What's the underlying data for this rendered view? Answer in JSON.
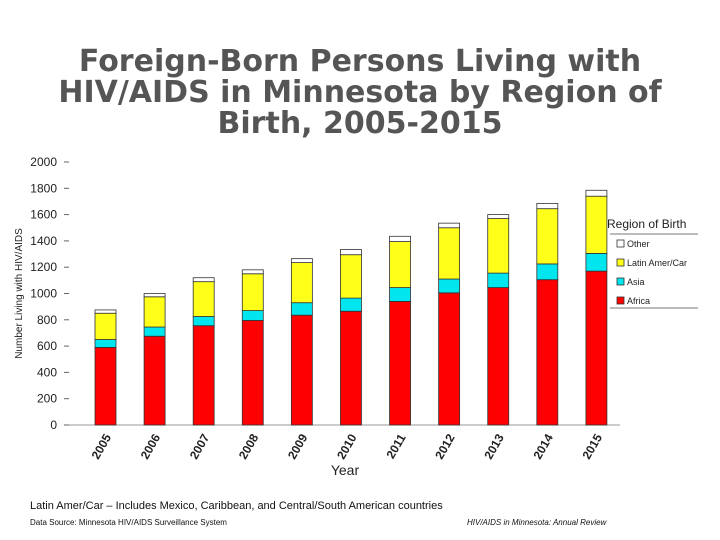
{
  "title_lines": [
    "Foreign-Born Persons Living with",
    "HIV/AIDS in Minnesota by Region of",
    "Birth, 2005-2015"
  ],
  "footnote": "Latin Amer/Car – Includes Mexico, Caribbean, and Central/South American countries",
  "source": "Data Source: Minnesota HIV/AIDS Surveillance System",
  "review": "HIV/AIDS in Minnesota: Annual Review",
  "colors": {
    "Africa": "#ff0000",
    "Asia": "#00e5ee",
    "Latin Amer/Car": "#ffff1a",
    "Other": "#ffffff"
  },
  "chart_data": {
    "type": "bar",
    "stacked": true,
    "title": "Foreign-Born Persons Living with HIV/AIDS in Minnesota by Region of Birth, 2005-2015",
    "xlabel": "Year",
    "ylabel": "Number Living with HIV/AIDS",
    "ylim": [
      0,
      2000
    ],
    "yticks": [
      0,
      200,
      400,
      600,
      800,
      1000,
      1200,
      1400,
      1600,
      1800,
      2000
    ],
    "legend_title": "Region of Birth",
    "legend_position": "right",
    "categories": [
      "2005",
      "2006",
      "2007",
      "2008",
      "2009",
      "2010",
      "2011",
      "2012",
      "2013",
      "2014",
      "2015"
    ],
    "series": [
      {
        "name": "Africa",
        "values": [
          590,
          675,
          755,
          795,
          835,
          865,
          940,
          1005,
          1045,
          1105,
          1170
        ]
      },
      {
        "name": "Asia",
        "values": [
          60,
          70,
          70,
          75,
          95,
          100,
          105,
          105,
          110,
          120,
          135
        ]
      },
      {
        "name": "Latin Amer/Car",
        "values": [
          200,
          230,
          265,
          280,
          305,
          330,
          350,
          390,
          415,
          420,
          435
        ]
      },
      {
        "name": "Other",
        "values": [
          25,
          25,
          30,
          30,
          30,
          40,
          40,
          35,
          30,
          40,
          45
        ]
      }
    ],
    "legend_order": [
      "Other",
      "Latin Amer/Car",
      "Asia",
      "Africa"
    ]
  }
}
